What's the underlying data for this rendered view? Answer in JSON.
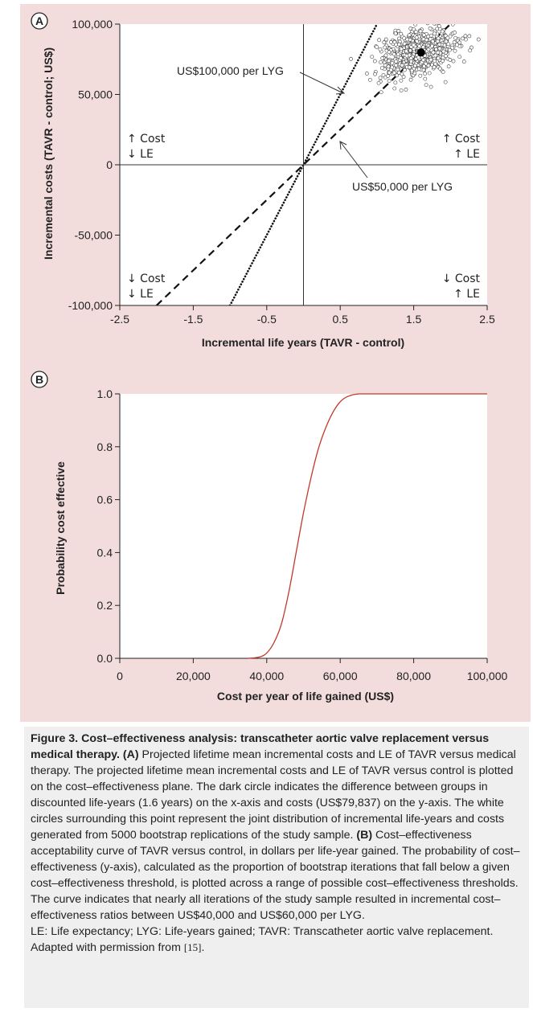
{
  "chart_data": [
    {
      "panel_label": "A",
      "type": "scatter",
      "xlabel": "Incremental life years (TAVR - control)",
      "ylabel": "Incremental costs (TAVR - control; US$)",
      "xlim": [
        -2.5,
        2.5
      ],
      "ylim": [
        -100000,
        100000
      ],
      "xticks": [
        -2.5,
        -1.5,
        -0.5,
        0.5,
        1.5,
        2.5
      ],
      "xtick_labels": [
        "-2.5",
        "-1.5",
        "-0.5",
        "0.5",
        "1.5",
        "2.5"
      ],
      "yticks": [
        -100000,
        -50000,
        0,
        50000,
        100000
      ],
      "ytick_labels": [
        "-100,000",
        "-50,000",
        "0",
        "50,000",
        "100,000"
      ],
      "point_estimate": {
        "x": 1.6,
        "y": 79837
      },
      "bootstrap_cloud": {
        "center_x": 1.55,
        "center_y": 80000,
        "n_drawn": 700,
        "replications": 5000
      },
      "reference_lines": [
        {
          "label": "US$100,000 per LYG",
          "slope": 100000,
          "style": "dotted"
        },
        {
          "label": "US$50,000 per LYG",
          "slope": 50000,
          "style": "dashed"
        }
      ],
      "quadrant_labels": {
        "top_left": [
          "↑ Cost",
          "↓ LE"
        ],
        "top_right": [
          "↑ Cost",
          "↑ LE"
        ],
        "bottom_left": [
          "↓ Cost",
          "↓ LE"
        ],
        "bottom_right": [
          "↓ Cost",
          "↑ LE"
        ]
      }
    },
    {
      "panel_label": "B",
      "type": "line",
      "xlabel": "Cost per year of life gained (US$)",
      "ylabel": "Probability cost effective",
      "xlim": [
        0,
        100000
      ],
      "ylim": [
        0,
        1
      ],
      "xticks": [
        0,
        20000,
        40000,
        60000,
        80000,
        100000
      ],
      "xtick_labels": [
        "0",
        "20,000",
        "40,000",
        "60,000",
        "80,000",
        "100,000"
      ],
      "yticks": [
        0,
        0.2,
        0.4,
        0.6,
        0.8,
        1.0
      ],
      "ytick_labels": [
        "0.0",
        "0.2",
        "0.4",
        "0.6",
        "0.8",
        "1.0"
      ],
      "series": [
        {
          "color": "#c0392b",
          "x": [
            35000,
            38000,
            40000,
            42000,
            44000,
            46000,
            48000,
            50000,
            52000,
            54000,
            56000,
            58000,
            60000,
            62000,
            65000,
            70000,
            80000,
            100000
          ],
          "y": [
            0.0,
            0.005,
            0.02,
            0.06,
            0.13,
            0.25,
            0.4,
            0.55,
            0.68,
            0.79,
            0.87,
            0.93,
            0.97,
            0.99,
            1.0,
            1.0,
            1.0,
            1.0
          ]
        }
      ]
    }
  ],
  "caption": {
    "title": "Figure 3. Cost–effectiveness analysis: transcatheter aortic valve replacement versus medical therapy.",
    "label_a": "(A)",
    "text_a": "Projected lifetime mean incremental costs and LE of TAVR versus medical therapy. The projected lifetime mean incremental costs and LE of TAVR versus control is plotted on the cost–effectiveness plane. The dark circle indicates the difference between groups in discounted life-years (1.6 years) on the x-axis and costs (US$79,837) on the y-axis. The white circles surrounding this point represent the joint distribution of incremental life-years and costs generated from 5000 bootstrap replications of the study sample.",
    "label_b": "(B)",
    "text_b": "Cost–effectiveness acceptability curve of TAVR versus control, in dollars per life-year gained. The probability of cost–effectiveness (y-axis), calculated as the proportion of bootstrap iterations that fall below a given cost–effectiveness threshold, is plotted across a range of possible cost–effectiveness thresholds. The curve indicates that nearly all iterations of the study sample resulted in incremental cost–effectiveness ratios between US$40,000 and US$60,000 per LYG.",
    "abbreviations": "LE: Life expectancy; LYG: Life-years gained; TAVR: Transcatheter aortic valve replacement.",
    "source_text": "Adapted with permission from",
    "source_ref": "[15]",
    "source_end": "."
  }
}
